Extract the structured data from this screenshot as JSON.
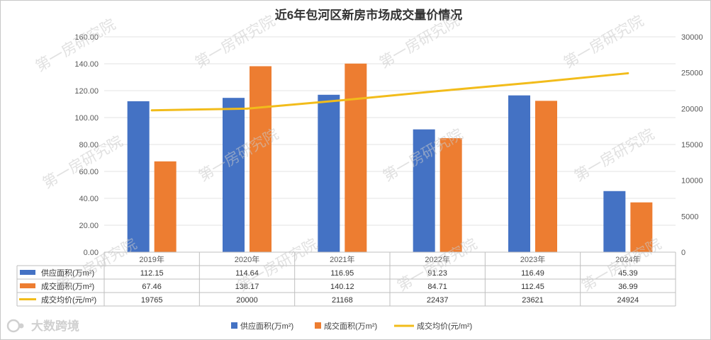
{
  "chart_data": {
    "type": "bar",
    "title": "近6年包河区新房市场成交量价情况",
    "categories": [
      "2019年",
      "2020年",
      "2021年",
      "2022年",
      "2023年",
      "2024年"
    ],
    "series": [
      {
        "name": "供应面积(万m²)",
        "kind": "bar",
        "axis": "left",
        "color": "#4472C4",
        "values": [
          112.15,
          114.64,
          116.95,
          91.23,
          116.49,
          45.39
        ],
        "labels": [
          "112.15",
          "114.64",
          "116.95",
          "91.23",
          "116.49",
          "45.39"
        ]
      },
      {
        "name": "成交面积(万m²)",
        "kind": "bar",
        "axis": "left",
        "color": "#ED7D31",
        "values": [
          67.46,
          138.17,
          140.12,
          84.71,
          112.45,
          36.99
        ],
        "labels": [
          "67.46",
          "138.17",
          "140.12",
          "84.71",
          "112.45",
          "36.99"
        ]
      },
      {
        "name": "成交均价(元/m²)",
        "kind": "line",
        "axis": "right",
        "color": "#F2BC1B",
        "values": [
          19765,
          20000,
          21168,
          22437,
          23621,
          24924
        ],
        "labels": [
          "19765",
          "20000",
          "21168",
          "22437",
          "23621",
          "24924"
        ]
      }
    ],
    "y_left": {
      "min": 0,
      "max": 160,
      "ticks": [
        "0.00",
        "20.00",
        "40.00",
        "60.00",
        "80.00",
        "100.00",
        "120.00",
        "140.00",
        "160.00"
      ]
    },
    "y_right": {
      "min": 0,
      "max": 30000,
      "ticks": [
        "0",
        "5000",
        "10000",
        "15000",
        "20000",
        "25000",
        "30000"
      ]
    },
    "grid": true,
    "legend": "bottom",
    "data_table": true
  },
  "watermarks": [
    "第一房研究院",
    "第一房研究院",
    "第一房研究院",
    "第一房研究院",
    "第一房研究院",
    "第一房研究院",
    "第一房研究院",
    "第一房研究院",
    "第一房研究院",
    "第一房研究院",
    "第一房研究院",
    "第一房研究院",
    "第一房研究院",
    "第一房研究院",
    "第一房研究院"
  ],
  "logo_text": "大数跨境"
}
